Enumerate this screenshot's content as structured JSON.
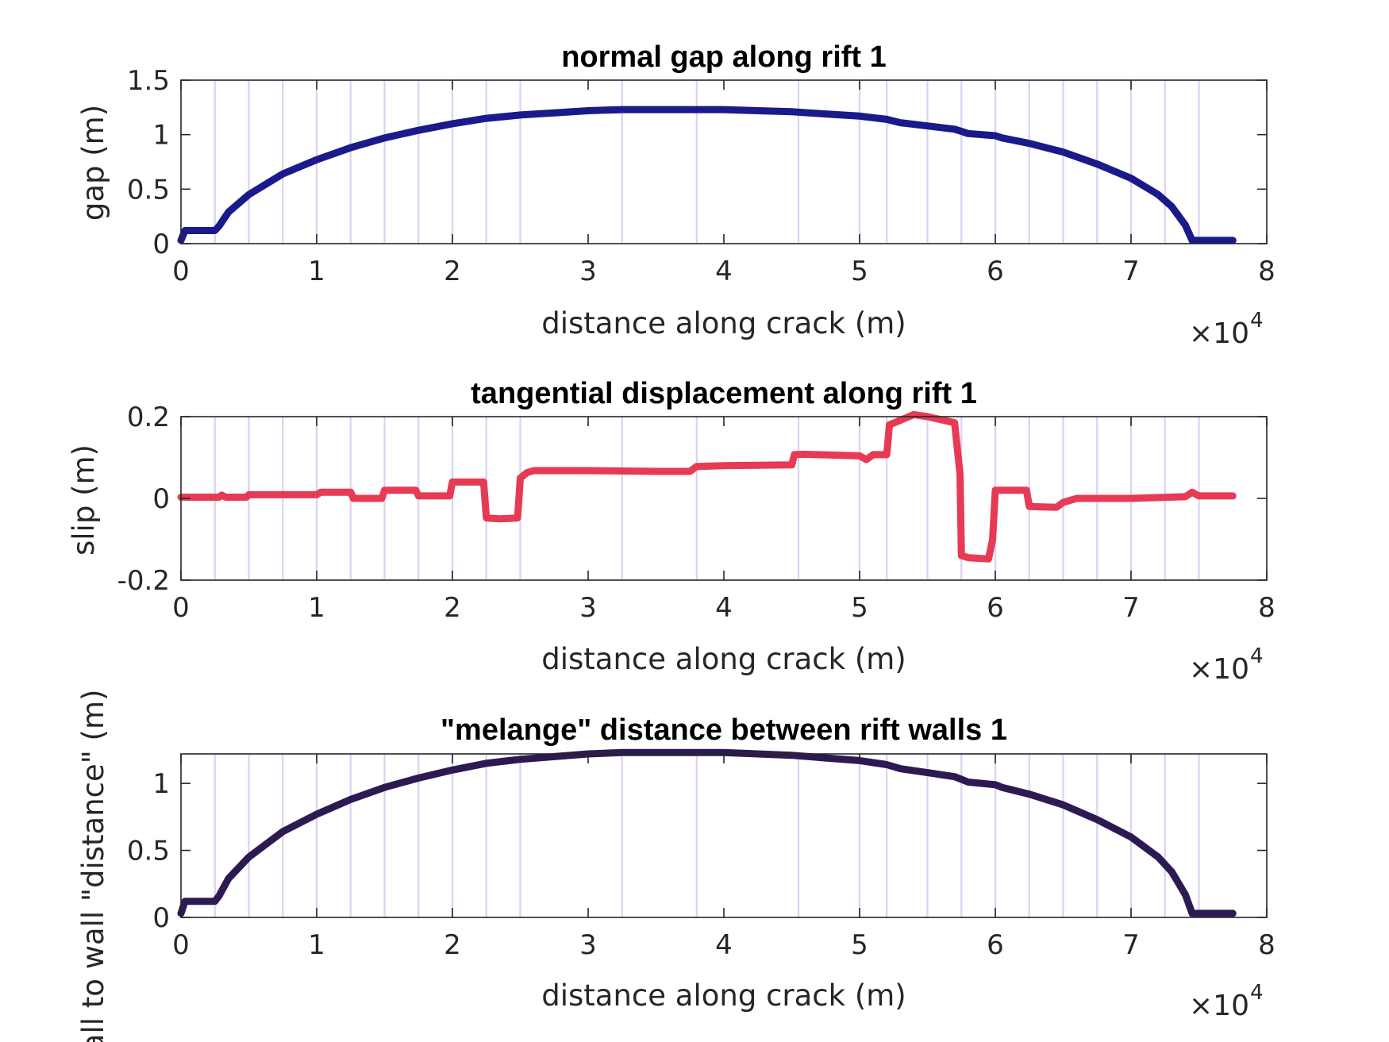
{
  "chart_data": [
    {
      "type": "line",
      "title": "normal gap along rift 1",
      "xlabel": "distance along crack (m)",
      "ylabel": "gap (m)",
      "x_multiplier": "×10",
      "x_multiplier_exp": "4",
      "xlim": [
        0,
        80000
      ],
      "ylim": [
        0,
        1.5
      ],
      "xticks": [
        0,
        10000,
        20000,
        30000,
        40000,
        50000,
        60000,
        70000,
        80000
      ],
      "xtick_labels": [
        "0",
        "1",
        "2",
        "3",
        "4",
        "5",
        "6",
        "7",
        "8"
      ],
      "yticks": [
        0,
        0.5,
        1,
        1.5
      ],
      "ytick_labels": [
        "0",
        "0.5",
        "1",
        "1.5"
      ],
      "vlines_x": [
        2500,
        5000,
        7500,
        10000,
        12500,
        15000,
        17500,
        20000,
        22500,
        25000,
        32500,
        38000,
        45500,
        50000,
        52000,
        55000,
        57500,
        60000,
        62500,
        65000,
        67500,
        70000,
        72500,
        75000
      ],
      "grid": false,
      "series": [
        {
          "color": "#1a1a8c",
          "x": [
            0,
            300,
            2500,
            2800,
            3500,
            5000,
            7500,
            10000,
            12500,
            15000,
            17500,
            20000,
            22500,
            25000,
            27500,
            30000,
            32500,
            35000,
            37500,
            40000,
            42500,
            45000,
            47500,
            50000,
            52000,
            53000,
            55000,
            57000,
            57500,
            58000,
            60000,
            60500,
            62500,
            65000,
            67500,
            70000,
            72000,
            73000,
            74000,
            74500,
            75500,
            76500,
            77500
          ],
          "y": [
            0.03,
            0.12,
            0.12,
            0.16,
            0.29,
            0.45,
            0.64,
            0.77,
            0.88,
            0.97,
            1.04,
            1.1,
            1.15,
            1.18,
            1.2,
            1.22,
            1.23,
            1.23,
            1.23,
            1.23,
            1.22,
            1.21,
            1.19,
            1.17,
            1.14,
            1.11,
            1.08,
            1.05,
            1.03,
            1.01,
            0.99,
            0.97,
            0.92,
            0.84,
            0.73,
            0.6,
            0.45,
            0.34,
            0.17,
            0.03,
            0.03,
            0.03,
            0.03
          ]
        }
      ]
    },
    {
      "type": "line",
      "title": "tangential displacement along rift 1",
      "xlabel": "distance along crack (m)",
      "ylabel": "slip (m)",
      "x_multiplier": "×10",
      "x_multiplier_exp": "4",
      "xlim": [
        0,
        80000
      ],
      "ylim": [
        -0.2,
        0.2
      ],
      "xticks": [
        0,
        10000,
        20000,
        30000,
        40000,
        50000,
        60000,
        70000,
        80000
      ],
      "xtick_labels": [
        "0",
        "1",
        "2",
        "3",
        "4",
        "5",
        "6",
        "7",
        "8"
      ],
      "yticks": [
        -0.2,
        0,
        0.2
      ],
      "ytick_labels": [
        "-0.2",
        "0",
        "0.2"
      ],
      "vlines_x": [
        2500,
        5000,
        7500,
        10000,
        12500,
        15000,
        17500,
        20000,
        22500,
        25000,
        32500,
        38000,
        45500,
        50000,
        52000,
        55000,
        57500,
        60000,
        62500,
        65000,
        67500,
        70000,
        72500,
        75000
      ],
      "grid": false,
      "series": [
        {
          "color": "#e63a55",
          "x": [
            0,
            2800,
            3000,
            3300,
            4800,
            5000,
            7500,
            10000,
            10300,
            12500,
            12700,
            14800,
            15000,
            17300,
            17500,
            19800,
            20000,
            22300,
            22500,
            23500,
            24800,
            25000,
            25500,
            26000,
            30000,
            35000,
            37500,
            38000,
            40000,
            45000,
            45200,
            46000,
            50000,
            50500,
            51000,
            52000,
            52200,
            54000,
            55000,
            57000,
            57400,
            57500,
            58000,
            59500,
            59800,
            60000,
            61000,
            62300,
            62500,
            64500,
            65000,
            66000,
            70000,
            74000,
            74500,
            75000,
            77500
          ],
          "y": [
            0.003,
            0.003,
            0.008,
            0.003,
            0.003,
            0.009,
            0.009,
            0.009,
            0.015,
            0.015,
            0.0,
            0.0,
            0.02,
            0.02,
            0.006,
            0.006,
            0.04,
            0.04,
            -0.048,
            -0.05,
            -0.048,
            0.05,
            0.063,
            0.068,
            0.068,
            0.066,
            0.066,
            0.078,
            0.08,
            0.082,
            0.107,
            0.108,
            0.104,
            0.095,
            0.107,
            0.107,
            0.18,
            0.205,
            0.2,
            0.185,
            0.06,
            -0.14,
            -0.145,
            -0.148,
            -0.1,
            0.02,
            0.02,
            0.02,
            -0.02,
            -0.022,
            -0.01,
            0.0,
            0.0,
            0.004,
            0.015,
            0.006,
            0.006
          ]
        }
      ]
    },
    {
      "type": "line",
      "title": "\"melange\" distance between rift walls 1",
      "xlabel": "distance along crack (m)",
      "ylabel": "wall to wall \"distance\" (m)",
      "x_multiplier": "×10",
      "x_multiplier_exp": "4",
      "xlim": [
        0,
        80000
      ],
      "ylim": [
        0,
        1.22
      ],
      "xticks": [
        0,
        10000,
        20000,
        30000,
        40000,
        50000,
        60000,
        70000,
        80000
      ],
      "xtick_labels": [
        "0",
        "1",
        "2",
        "3",
        "4",
        "5",
        "6",
        "7",
        "8"
      ],
      "yticks": [
        0,
        0.5,
        1
      ],
      "ytick_labels": [
        "0",
        "0.5",
        "1"
      ],
      "vlines_x": [
        2500,
        5000,
        7500,
        10000,
        12500,
        15000,
        17500,
        20000,
        22500,
        25000,
        32500,
        38000,
        45500,
        50000,
        52000,
        55000,
        57500,
        60000,
        62500,
        65000,
        67500,
        70000,
        72500,
        75000
      ],
      "grid": false,
      "series": [
        {
          "color": "#2e1a52",
          "x": [
            0,
            300,
            2500,
            2800,
            3500,
            5000,
            7500,
            10000,
            12500,
            15000,
            17500,
            20000,
            22500,
            25000,
            27500,
            30000,
            32500,
            35000,
            37500,
            40000,
            42500,
            45000,
            47500,
            50000,
            52000,
            53000,
            55000,
            57000,
            57500,
            58000,
            60000,
            60500,
            62500,
            65000,
            67500,
            70000,
            72000,
            73000,
            74000,
            74500,
            75500,
            76500,
            77500
          ],
          "y": [
            0.03,
            0.12,
            0.12,
            0.16,
            0.29,
            0.45,
            0.64,
            0.77,
            0.88,
            0.97,
            1.04,
            1.1,
            1.15,
            1.18,
            1.2,
            1.22,
            1.23,
            1.23,
            1.23,
            1.23,
            1.22,
            1.21,
            1.19,
            1.17,
            1.14,
            1.11,
            1.08,
            1.05,
            1.03,
            1.01,
            0.99,
            0.97,
            0.92,
            0.84,
            0.73,
            0.6,
            0.45,
            0.34,
            0.17,
            0.03,
            0.03,
            0.03,
            0.03
          ]
        }
      ]
    }
  ]
}
